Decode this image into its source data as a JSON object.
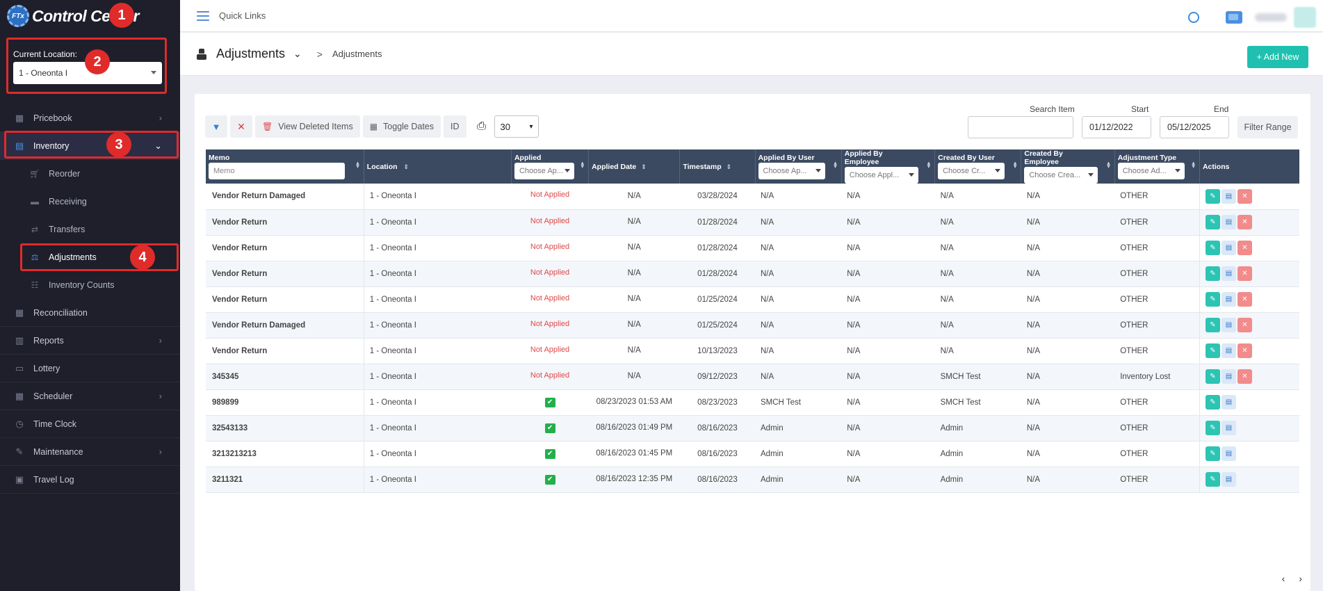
{
  "brand": {
    "logo_text": "FTx",
    "title": "Control Center"
  },
  "annotations": [
    "1",
    "2",
    "3",
    "4"
  ],
  "location": {
    "label": "Current Location:",
    "value": "1 - Oneonta I"
  },
  "sidebar": {
    "items": [
      {
        "label": "Pricebook",
        "icon": "calculator-icon",
        "has_chevron": true
      },
      {
        "label": "Inventory",
        "icon": "inventory-icon",
        "has_chevron": true,
        "expanded": true
      },
      {
        "label": "Reconciliation",
        "icon": "grid-icon"
      },
      {
        "label": "Reports",
        "icon": "chart-icon",
        "has_chevron": true
      },
      {
        "label": "Lottery",
        "icon": "ticket-icon"
      },
      {
        "label": "Scheduler",
        "icon": "calendar-icon",
        "has_chevron": true
      },
      {
        "label": "Time Clock",
        "icon": "clock-icon"
      },
      {
        "label": "Maintenance",
        "icon": "wrench-icon",
        "has_chevron": true
      },
      {
        "label": "Travel Log",
        "icon": "car-icon"
      }
    ],
    "inventory_sub": [
      {
        "label": "Reorder",
        "icon": "cart-icon"
      },
      {
        "label": "Receiving",
        "icon": "truck-icon"
      },
      {
        "label": "Transfers",
        "icon": "transfer-icon"
      },
      {
        "label": "Adjustments",
        "icon": "scale-icon",
        "current": true
      },
      {
        "label": "Inventory Counts",
        "icon": "counts-icon"
      }
    ]
  },
  "topbar": {
    "quick_links": "Quick Links"
  },
  "header": {
    "title": "Adjustments",
    "separator": ">",
    "breadcrumb": "Adjustments",
    "add_new": "+ Add New"
  },
  "toolbar": {
    "view_deleted": "View Deleted Items",
    "toggle_dates": "Toggle Dates",
    "id": "ID",
    "page_size": "30",
    "search_label": "Search Item",
    "search_value": "",
    "start_label": "Start",
    "start_value": "01/12/2022",
    "end_label": "End",
    "end_value": "05/12/2025",
    "filter_range": "Filter Range"
  },
  "table": {
    "headers": {
      "memo": "Memo",
      "memo_placeholder": "Memo",
      "location": "Location",
      "applied": "Applied",
      "applied_placeholder": "Choose Ap...",
      "applied_date": "Applied Date",
      "timestamp": "Timestamp",
      "applied_by_user": "Applied By User",
      "applied_by_user_placeholder": "Choose Ap...",
      "applied_by_employee": "Applied By Employee",
      "applied_by_employee_placeholder": "Choose Appl...",
      "created_by_user": "Created By User",
      "created_by_user_placeholder": "Choose Cr...",
      "created_by_employee": "Created By Employee",
      "created_by_employee_placeholder": "Choose Crea...",
      "adjustment_type": "Adjustment Type",
      "adjustment_type_placeholder": "Choose Ad...",
      "actions": "Actions"
    },
    "rows": [
      {
        "memo": "Vendor Return Damaged",
        "location": "1 - Oneonta I",
        "applied": "Not Applied",
        "applied_date": "N/A",
        "timestamp": "03/28/2024",
        "applied_by_user": "N/A",
        "applied_by_employee": "N/A",
        "created_by_user": "N/A",
        "created_by_employee": "N/A",
        "adjustment_type": "OTHER"
      },
      {
        "memo": "Vendor Return",
        "location": "1 - Oneonta I",
        "applied": "Not Applied",
        "applied_date": "N/A",
        "timestamp": "01/28/2024",
        "applied_by_user": "N/A",
        "applied_by_employee": "N/A",
        "created_by_user": "N/A",
        "created_by_employee": "N/A",
        "adjustment_type": "OTHER"
      },
      {
        "memo": "Vendor Return",
        "location": "1 - Oneonta I",
        "applied": "Not Applied",
        "applied_date": "N/A",
        "timestamp": "01/28/2024",
        "applied_by_user": "N/A",
        "applied_by_employee": "N/A",
        "created_by_user": "N/A",
        "created_by_employee": "N/A",
        "adjustment_type": "OTHER"
      },
      {
        "memo": "Vendor Return",
        "location": "1 - Oneonta I",
        "applied": "Not Applied",
        "applied_date": "N/A",
        "timestamp": "01/28/2024",
        "applied_by_user": "N/A",
        "applied_by_employee": "N/A",
        "created_by_user": "N/A",
        "created_by_employee": "N/A",
        "adjustment_type": "OTHER"
      },
      {
        "memo": "Vendor Return",
        "location": "1 - Oneonta I",
        "applied": "Not Applied",
        "applied_date": "N/A",
        "timestamp": "01/25/2024",
        "applied_by_user": "N/A",
        "applied_by_employee": "N/A",
        "created_by_user": "N/A",
        "created_by_employee": "N/A",
        "adjustment_type": "OTHER"
      },
      {
        "memo": "Vendor Return Damaged",
        "location": "1 - Oneonta I",
        "applied": "Not Applied",
        "applied_date": "N/A",
        "timestamp": "01/25/2024",
        "applied_by_user": "N/A",
        "applied_by_employee": "N/A",
        "created_by_user": "N/A",
        "created_by_employee": "N/A",
        "adjustment_type": "OTHER"
      },
      {
        "memo": "Vendor Return",
        "location": "1 - Oneonta I",
        "applied": "Not Applied",
        "applied_date": "N/A",
        "timestamp": "10/13/2023",
        "applied_by_user": "N/A",
        "applied_by_employee": "N/A",
        "created_by_user": "N/A",
        "created_by_employee": "N/A",
        "adjustment_type": "OTHER"
      },
      {
        "memo": "345345",
        "location": "1 - Oneonta I",
        "applied": "Not Applied",
        "applied_date": "N/A",
        "timestamp": "09/12/2023",
        "applied_by_user": "N/A",
        "applied_by_employee": "N/A",
        "created_by_user": "SMCH Test",
        "created_by_employee": "N/A",
        "adjustment_type": "Inventory Lost"
      },
      {
        "memo": "989899",
        "location": "1 - Oneonta I",
        "applied": "✔",
        "applied_date": "08/23/2023 01:53 AM",
        "timestamp": "08/23/2023",
        "applied_by_user": "SMCH Test",
        "applied_by_employee": "N/A",
        "created_by_user": "SMCH Test",
        "created_by_employee": "N/A",
        "adjustment_type": "OTHER"
      },
      {
        "memo": "32543133",
        "location": "1 - Oneonta I",
        "applied": "✔",
        "applied_date": "08/16/2023 01:49 PM",
        "timestamp": "08/16/2023",
        "applied_by_user": "Admin",
        "applied_by_employee": "N/A",
        "created_by_user": "Admin",
        "created_by_employee": "N/A",
        "adjustment_type": "OTHER"
      },
      {
        "memo": "3213213213",
        "location": "1 - Oneonta I",
        "applied": "✔",
        "applied_date": "08/16/2023 01:45 PM",
        "timestamp": "08/16/2023",
        "applied_by_user": "Admin",
        "applied_by_employee": "N/A",
        "created_by_user": "Admin",
        "created_by_employee": "N/A",
        "adjustment_type": "OTHER"
      },
      {
        "memo": "3211321",
        "location": "1 - Oneonta I",
        "applied": "✔",
        "applied_date": "08/16/2023 12:35 PM",
        "timestamp": "08/16/2023",
        "applied_by_user": "Admin",
        "applied_by_employee": "N/A",
        "created_by_user": "Admin",
        "created_by_employee": "N/A",
        "adjustment_type": "OTHER"
      }
    ]
  },
  "pager": {
    "prev": "‹",
    "next": "›"
  }
}
